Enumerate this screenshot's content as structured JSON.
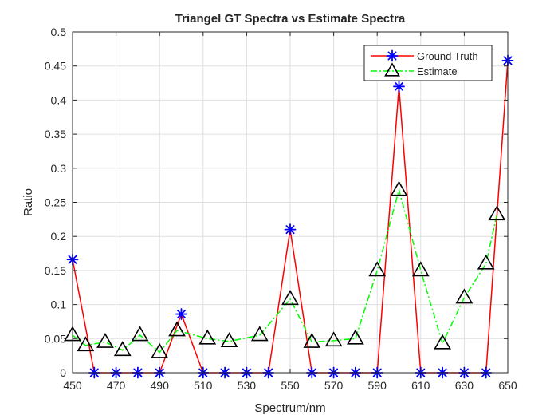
{
  "chart_data": {
    "type": "line",
    "title": "Triangel GT Spectra vs Estimate Spectra",
    "xlabel": "Spectrum/nm",
    "ylabel": "Ratio",
    "xlim": [
      450,
      650
    ],
    "ylim": [
      0,
      0.5
    ],
    "xticks": [
      450,
      470,
      490,
      510,
      530,
      550,
      570,
      590,
      610,
      630,
      650
    ],
    "yticks": [
      0,
      0.05,
      0.1,
      0.15,
      0.2,
      0.25,
      0.3,
      0.35,
      0.4,
      0.45,
      0.5
    ],
    "grid": true,
    "legend_position": "top-right",
    "series": [
      {
        "name": "Ground Truth",
        "color": "#ff0000",
        "marker_color": "#0000ff",
        "marker": "asterisk",
        "line_style": "solid",
        "x": [
          450,
          460,
          470,
          480,
          490,
          500,
          510,
          520,
          530,
          540,
          550,
          560,
          570,
          580,
          590,
          600,
          610,
          620,
          630,
          640,
          650
        ],
        "y": [
          0.166,
          0,
          0,
          0,
          0,
          0.086,
          0,
          0,
          0,
          0,
          0.21,
          0,
          0,
          0,
          0,
          0.42,
          0,
          0,
          0,
          0,
          0.458
        ]
      },
      {
        "name": "Estimate",
        "color": "#00ff00",
        "marker_color": "#000000",
        "marker": "triangle",
        "line_style": "dash-dot",
        "x": [
          450,
          456,
          465,
          473,
          481,
          490,
          498,
          512,
          522,
          536,
          550,
          560,
          570,
          580,
          590,
          600,
          610,
          620,
          630,
          640,
          645
        ],
        "y": [
          0.055,
          0.04,
          0.045,
          0.033,
          0.055,
          0.03,
          0.062,
          0.05,
          0.046,
          0.055,
          0.108,
          0.045,
          0.047,
          0.05,
          0.15,
          0.268,
          0.15,
          0.043,
          0.11,
          0.16,
          0.232
        ]
      }
    ]
  }
}
